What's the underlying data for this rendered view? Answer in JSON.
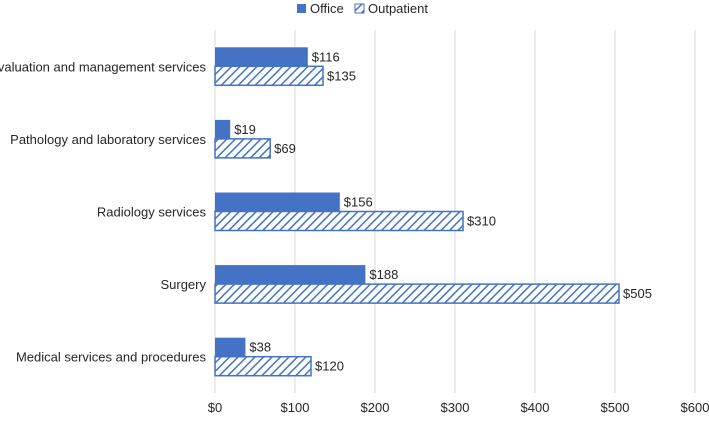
{
  "chart_data": {
    "type": "bar",
    "orientation": "horizontal",
    "title": "",
    "xlabel": "",
    "ylabel": "",
    "xlim": [
      0,
      600
    ],
    "grid": true,
    "legend_position": "top",
    "categories": [
      "Evaluation and management services",
      "Pathology and laboratory services",
      "Radiology services",
      "Surgery",
      "Medical services and procedures"
    ],
    "series": [
      {
        "name": "Office",
        "style": "solid",
        "color": "#4472c4",
        "values": [
          116,
          19,
          156,
          188,
          38
        ]
      },
      {
        "name": "Outpatient",
        "style": "hatched",
        "color": "#4472c4",
        "values": [
          135,
          69,
          310,
          505,
          120
        ]
      }
    ],
    "x_ticks": [
      0,
      100,
      200,
      300,
      400,
      500,
      600
    ],
    "tick_labels": [
      "$0",
      "$100",
      "$200",
      "$300",
      "$400",
      "$500",
      "$600"
    ],
    "value_labels": [
      [
        "$116",
        "$19",
        "$156",
        "$188",
        "$38"
      ],
      [
        "$135",
        "$69",
        "$310",
        "$505",
        "$120"
      ]
    ]
  },
  "colors": {
    "accent": "#4472c4",
    "grid": "#d9d9d9",
    "text": "#262626"
  }
}
